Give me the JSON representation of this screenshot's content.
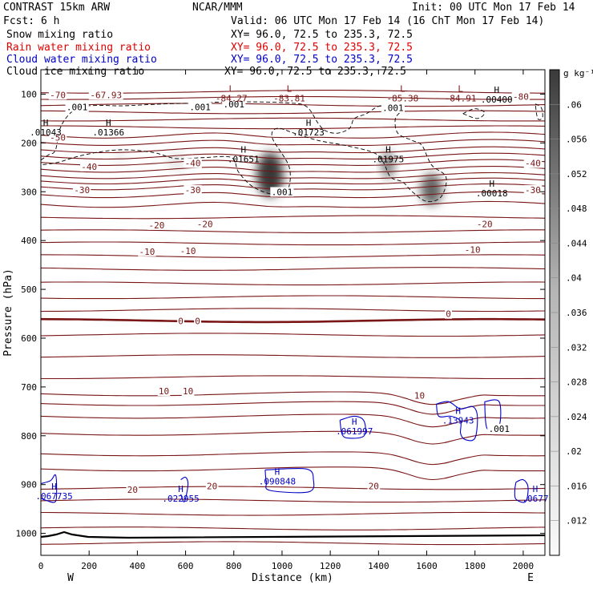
{
  "header": {
    "model": "CONTRAST 15km ARW",
    "fcst": "Fcst:     6 h",
    "org": "NCAR/MMM",
    "init": "Init: 00 UTC Mon 17 Feb 14",
    "valid": "Valid: 06 UTC Mon 17 Feb 14 (16 ChT Mon 17 Feb 14)",
    "fields": [
      {
        "name": "Snow mixing ratio",
        "xy": "XY=  96.0, 72.5 to 235.3, 72.5",
        "color": "#000000"
      },
      {
        "name": "Rain water mixing ratio",
        "xy": "XY=  96.0, 72.5 to 235.3, 72.5",
        "color": "#e00000"
      },
      {
        "name": "Cloud water mixing ratio",
        "xy": "XY=  96.0, 72.5 to 235.3, 72.5",
        "color": "#0000c8"
      },
      {
        "name": "Cloud ice mixing ratio",
        "xy": "XY=  96.0, 72.5 to 235.3, 72.5",
        "color": "#000000"
      }
    ]
  },
  "chart_data": {
    "type": "heatmap",
    "xlabel": "Distance (km)",
    "ylabel": "Pressure (hPa)",
    "xlim": [
      0,
      2090
    ],
    "ylim": [
      1045,
      50
    ],
    "x_ticks": [
      0,
      200,
      400,
      600,
      800,
      1000,
      1200,
      1400,
      1600,
      1800,
      2000
    ],
    "y_ticks": [
      100,
      200,
      300,
      400,
      500,
      600,
      700,
      800,
      900,
      1000
    ],
    "x_end_labels": {
      "left": "W",
      "right": "E"
    },
    "colorbar": {
      "unit": "g kg⁻¹",
      "ticks": [
        ".06",
        ".056",
        ".052",
        ".048",
        ".044",
        ".04",
        ".036",
        ".032",
        ".028",
        ".024",
        ".02",
        ".016",
        ".012"
      ],
      "tick_values": [
        0.06,
        0.056,
        0.052,
        0.048,
        0.044,
        0.04,
        0.036,
        0.032,
        0.028,
        0.024,
        0.02,
        0.016,
        0.012
      ],
      "range": [
        0.008,
        0.064
      ]
    },
    "temperature_isotherms": {
      "color": "#7a1515",
      "labels": [
        {
          "text": "-70",
          "x": 70,
          "p": 103
        },
        {
          "text": "-67.93",
          "x": 270,
          "p": 103
        },
        {
          "text": "-80",
          "x": 1990,
          "p": 107
        },
        {
          "text": "-50",
          "x": 70,
          "p": 190
        },
        {
          "text": "-40",
          "x": 200,
          "p": 250
        },
        {
          "text": "-40",
          "x": 630,
          "p": 243
        },
        {
          "text": "-40",
          "x": 2040,
          "p": 243
        },
        {
          "text": "-30",
          "x": 170,
          "p": 298
        },
        {
          "text": "-30",
          "x": 630,
          "p": 298
        },
        {
          "text": "-30",
          "x": 2040,
          "p": 298
        },
        {
          "text": "-20",
          "x": 480,
          "p": 370
        },
        {
          "text": "-20",
          "x": 680,
          "p": 368
        },
        {
          "text": "-20",
          "x": 1840,
          "p": 368
        },
        {
          "text": "-10",
          "x": 440,
          "p": 424
        },
        {
          "text": "-10",
          "x": 610,
          "p": 423
        },
        {
          "text": "-10",
          "x": 1790,
          "p": 420
        },
        {
          "text": "0",
          "x": 580,
          "p": 566
        },
        {
          "text": "0",
          "x": 650,
          "p": 566
        },
        {
          "text": "0",
          "x": 1690,
          "p": 552
        },
        {
          "text": "10",
          "x": 510,
          "p": 710
        },
        {
          "text": "10",
          "x": 610,
          "p": 710
        },
        {
          "text": "10",
          "x": 1570,
          "p": 719
        },
        {
          "text": "20",
          "x": 380,
          "p": 912
        },
        {
          "text": "20",
          "x": 710,
          "p": 905
        },
        {
          "text": "20",
          "x": 1380,
          "p": 905
        }
      ]
    },
    "extrema_labels": [
      {
        "mark": "L",
        "text": "-84.27",
        "x": 790,
        "p": 95,
        "color": "#7a1515"
      },
      {
        "mark": "L",
        "text": "-83.81",
        "x": 1030,
        "p": 95,
        "color": "#7a1515"
      },
      {
        "mark": "L",
        "text": "-85.38",
        "x": 1500,
        "p": 95,
        "color": "#7a1515"
      },
      {
        "mark": "L",
        "text": "-84.91",
        "x": 1740,
        "p": 95,
        "color": "#7a1515"
      },
      {
        "mark": "H",
        "text": ".00400",
        "x": 1890,
        "p": 98,
        "color": "#000000"
      },
      {
        "mark": "H",
        "text": ".01043",
        "x": 20,
        "p": 165,
        "color": "#000000"
      },
      {
        "mark": "H",
        "text": ".01366",
        "x": 280,
        "p": 165,
        "color": "#000000"
      },
      {
        "mark": "H",
        "text": ".01723",
        "x": 1110,
        "p": 165,
        "color": "#000000"
      },
      {
        "mark": "H",
        "text": ".01651",
        "x": 840,
        "p": 220,
        "color": "#000000"
      },
      {
        "mark": "H",
        "text": ".01975",
        "x": 1440,
        "p": 220,
        "color": "#000000"
      },
      {
        "mark": "H",
        "text": ".00018",
        "x": 1870,
        "p": 290,
        "color": "#000000"
      },
      {
        "mark": "H",
        "text": ".13943",
        "x": 1730,
        "p": 755,
        "color": "#0000c8"
      },
      {
        "mark": "H",
        "text": ".061997",
        "x": 1300,
        "p": 777,
        "color": "#0000c8"
      },
      {
        "mark": "H",
        "text": ".090848",
        "x": 980,
        "p": 880,
        "color": "#0000c8"
      },
      {
        "mark": "H",
        "text": ".067735",
        "x": 55,
        "p": 910,
        "color": "#0000c8"
      },
      {
        "mark": "H",
        "text": ".022955",
        "x": 580,
        "p": 915,
        "color": "#0000c8"
      },
      {
        "mark": "H",
        "text": ".0677",
        "x": 2050,
        "p": 915,
        "color": "#0000c8"
      }
    ],
    "cloud_ice_contour_labels": [
      {
        "text": ".001",
        "x": 150,
        "p": 128
      },
      {
        "text": ".001",
        "x": 660,
        "p": 128
      },
      {
        "text": ".001",
        "x": 800,
        "p": 122
      },
      {
        "text": ".001",
        "x": 1460,
        "p": 130
      },
      {
        "text": ".001",
        "x": 1000,
        "p": 302
      },
      {
        "text": ".001",
        "x": 1900,
        "p": 787
      }
    ],
    "snow_shading": [
      {
        "x": 950,
        "p": 265,
        "sx": 55,
        "sp": 45,
        "amp": 0.062
      },
      {
        "x": 1440,
        "p": 245,
        "sx": 25,
        "sp": 28,
        "amp": 0.045
      },
      {
        "x": 1620,
        "p": 295,
        "sx": 45,
        "sp": 32,
        "amp": 0.05
      },
      {
        "x": 560,
        "p": 238,
        "sx": 45,
        "sp": 20,
        "amp": 0.013
      },
      {
        "x": 330,
        "p": 228,
        "sx": 25,
        "sp": 15,
        "amp": 0.012
      }
    ]
  }
}
